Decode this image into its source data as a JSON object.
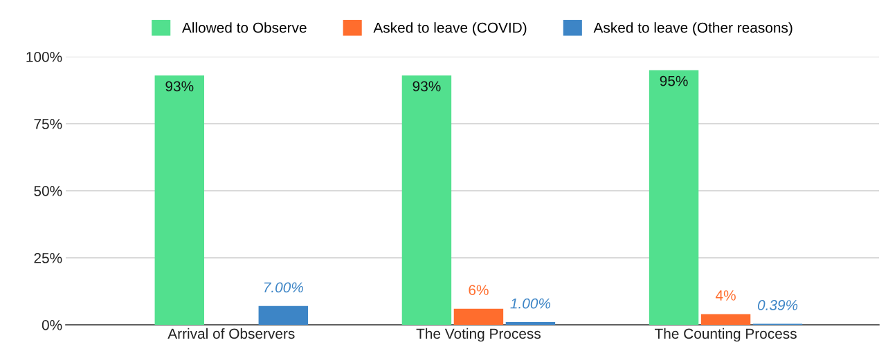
{
  "chart_data": {
    "type": "bar",
    "categories": [
      "Arrival of Observers",
      "The Voting Process",
      "The Counting Process"
    ],
    "series": [
      {
        "name": "Allowed to Observe",
        "color": "#52e08e",
        "values": [
          93,
          93,
          95
        ],
        "value_labels": [
          "93%",
          "93%",
          "95%"
        ]
      },
      {
        "name": "Asked to leave (COVID)",
        "color": "#ff6d2d",
        "values": [
          null,
          6,
          4
        ],
        "value_labels": [
          null,
          "6%",
          "4%"
        ]
      },
      {
        "name": "Asked to leave (Other reasons)",
        "color": "#3d85c6",
        "values": [
          7,
          1,
          0.39
        ],
        "value_labels": [
          "7.00%",
          "1.00%",
          "0.39%"
        ]
      }
    ],
    "ylim": [
      0,
      100
    ],
    "yticks": [
      {
        "value": 0,
        "label": "0%"
      },
      {
        "value": 25,
        "label": "25%"
      },
      {
        "value": 50,
        "label": "50%"
      },
      {
        "value": 75,
        "label": "75%"
      },
      {
        "value": 100,
        "label": "100%"
      }
    ],
    "grid": "y",
    "legend": "top"
  }
}
